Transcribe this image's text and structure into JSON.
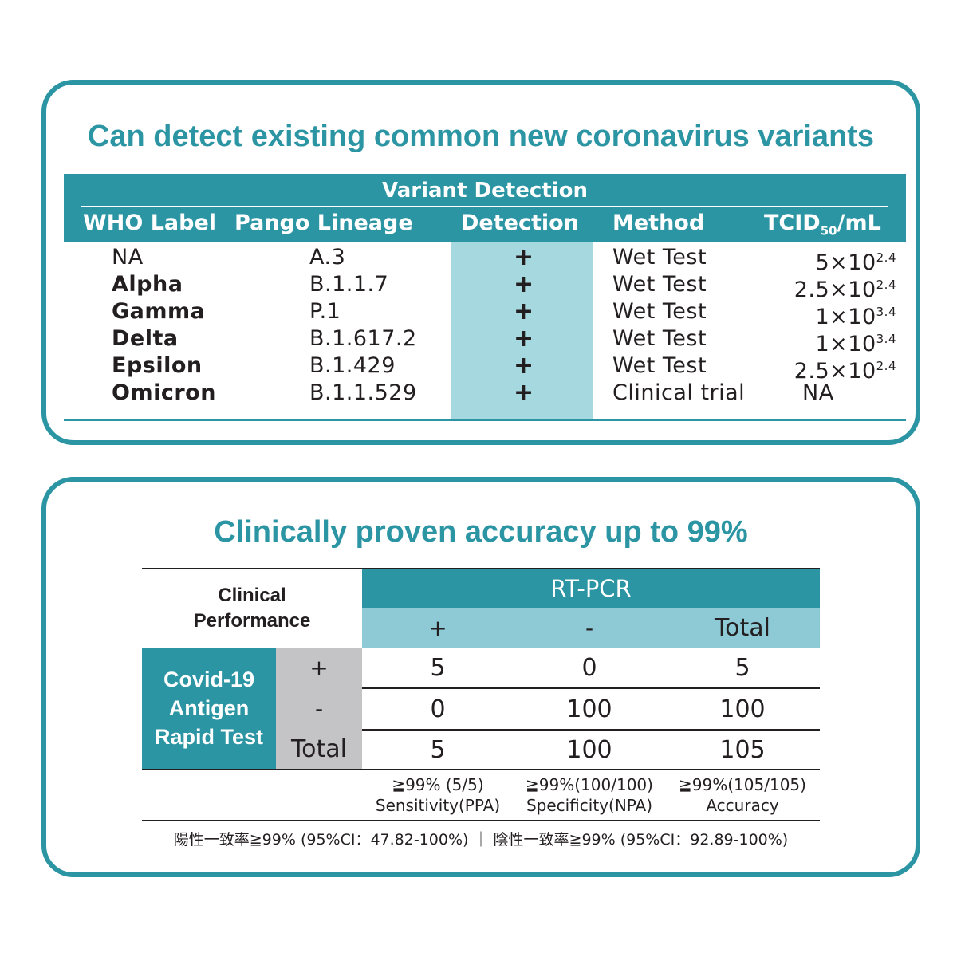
{
  "variants": {
    "title": "Can detect existing common new coronavirus variants",
    "caption": "Variant Detection",
    "headers": {
      "who": "WHO Label",
      "pango": "Pango Lineage",
      "detection": "Detection",
      "method": "Method",
      "tcid": "TCID",
      "tcid_sub": "50",
      "tcid_unit": "/mL"
    },
    "rows": [
      {
        "who": "NA",
        "pango": "A.3",
        "detection": "+",
        "method": "Wet Test",
        "tcid": "5×10",
        "exp": "2.4"
      },
      {
        "who": "Alpha",
        "pango": "B.1.1.7",
        "detection": "+",
        "method": "Wet Test",
        "tcid": "2.5×10",
        "exp": "2.4"
      },
      {
        "who": "Gamma",
        "pango": "P.1",
        "detection": "+",
        "method": "Wet Test",
        "tcid": "1×10",
        "exp": "3.4"
      },
      {
        "who": "Delta",
        "pango": "B.1.617.2",
        "detection": "+",
        "method": "Wet Test",
        "tcid": "1×10",
        "exp": "3.4"
      },
      {
        "who": "Epsilon",
        "pango": "B.1.429",
        "detection": "+",
        "method": "Wet Test",
        "tcid": "2.5×10",
        "exp": "2.4"
      },
      {
        "who": "Omicron",
        "pango": "B.1.1.529",
        "detection": "+",
        "method": "Clinical trial",
        "tcid": "NA",
        "exp": ""
      }
    ]
  },
  "accuracy": {
    "title": "Clinically proven accuracy up to 99%",
    "corner_line1": "Clinical",
    "corner_line2": "Performance",
    "ref_header": "RT-PCR",
    "ref_cols": [
      "+",
      "-",
      "Total"
    ],
    "test_label_line1": "Covid-19",
    "test_label_line2": "Antigen",
    "test_label_line3": "Rapid Test",
    "rows": [
      {
        "label": "+",
        "values": [
          "5",
          "0",
          "5"
        ]
      },
      {
        "label": "-",
        "values": [
          "0",
          "100",
          "100"
        ]
      },
      {
        "label": "Total",
        "values": [
          "5",
          "100",
          "105"
        ]
      }
    ],
    "metrics": [
      {
        "value": "≧99% (5/5)",
        "name": "Sensitivity(PPA)"
      },
      {
        "value": "≧99%(100/100)",
        "name": "Specificity(NPA)"
      },
      {
        "value": "≧99%(105/105)",
        "name": "Accuracy"
      }
    ],
    "footnote": "陽性一致率≧99% (95%CI：47.82-100%) ｜ 陰性一致率≧99% (95%CI：92.89-100%)"
  },
  "colors": {
    "accent": "#2b95a3",
    "light_accent": "#8dcad6",
    "detection_band": "#a6d8e0",
    "grey_cell": "#c4c3c6"
  }
}
